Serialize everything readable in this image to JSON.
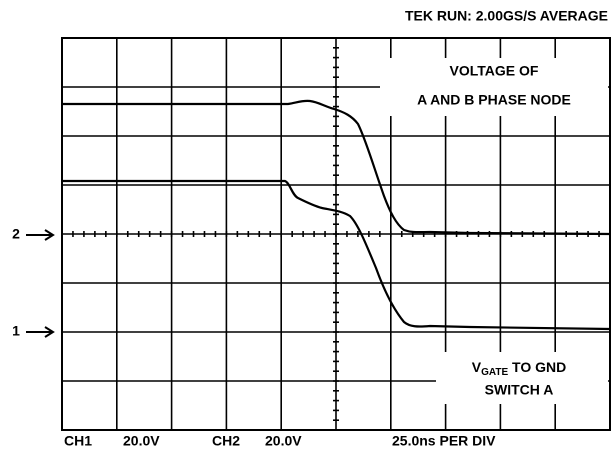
{
  "header": {
    "title": "TEK RUN: 2.00GS/S AVERAGE"
  },
  "labels": {
    "upper_line1": "VOLTAGE OF",
    "upper_line2": "A AND B PHASE NODE",
    "lower_line1": {
      "symbol": "V",
      "subscript": "GATE",
      "rest": " TO GND"
    },
    "lower_line2": "SWITCH A"
  },
  "markers": [
    "2",
    "1"
  ],
  "footer": {
    "ch1": "CH1",
    "ch1_scale": "20.0V",
    "ch2": "CH2",
    "ch2_scale": "20.0V",
    "timebase": "25.0ns PER DIV"
  }
}
